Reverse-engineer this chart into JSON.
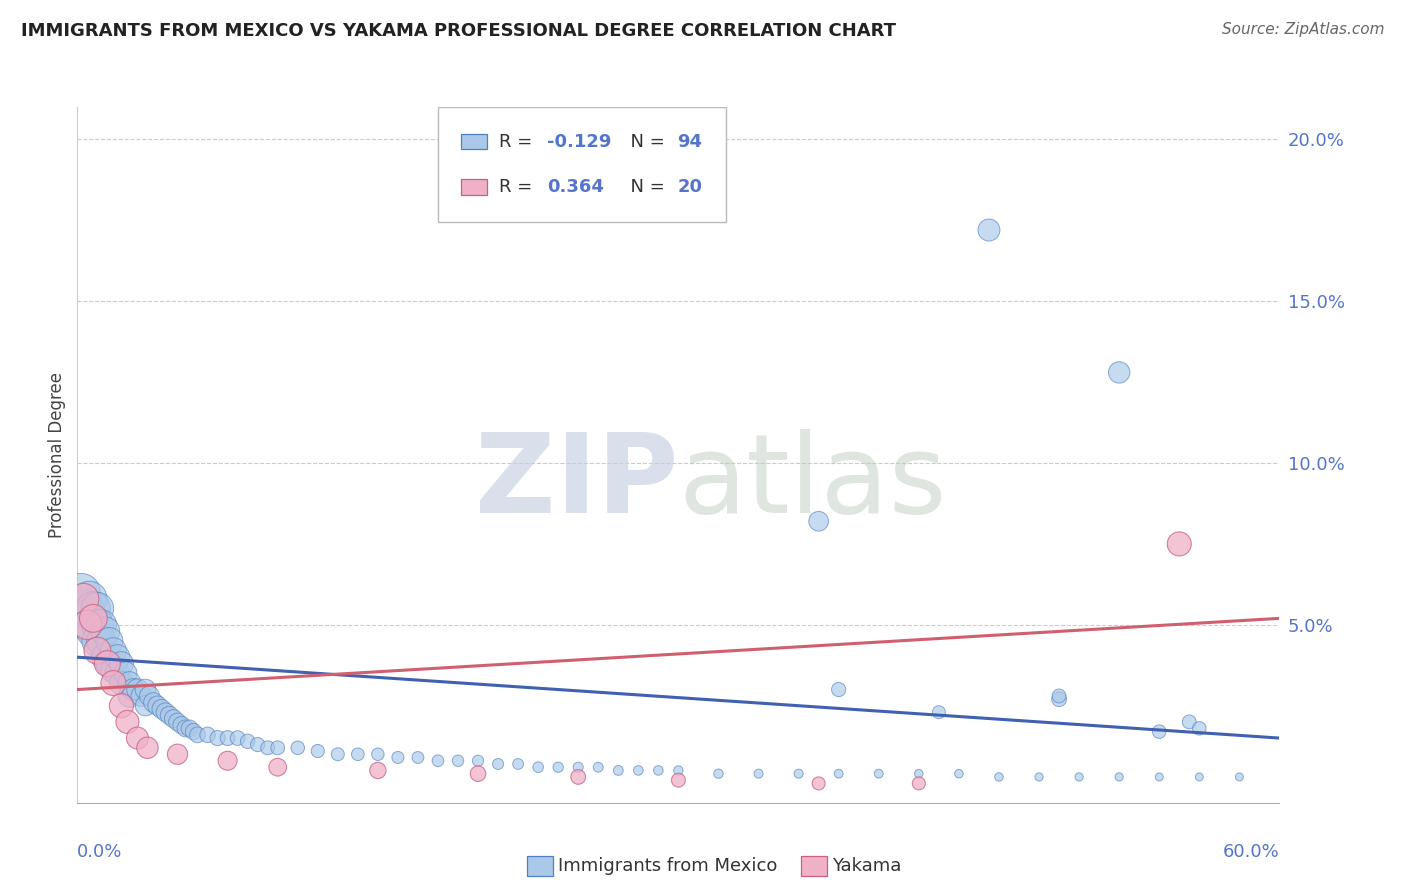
{
  "title": "IMMIGRANTS FROM MEXICO VS YAKAMA PROFESSIONAL DEGREE CORRELATION CHART",
  "source": "Source: ZipAtlas.com",
  "ylabel": "Professional Degree",
  "xlim": [
    0.0,
    0.6
  ],
  "ylim": [
    -0.005,
    0.21
  ],
  "yticks": [
    0.05,
    0.1,
    0.15,
    0.2
  ],
  "ytick_labels": [
    "5.0%",
    "10.0%",
    "15.0%",
    "20.0%"
  ],
  "xtick_left": "0.0%",
  "xtick_right": "60.0%",
  "blue_face": "#aac8e8",
  "blue_edge": "#5080c0",
  "pink_face": "#f0b0c8",
  "pink_edge": "#c86080",
  "blue_line": "#4060b0",
  "pink_line": "#d06070",
  "axis_color": "#5575cc",
  "title_color": "#222222",
  "source_color": "#666666",
  "grid_color": "#cccccc",
  "bg_color": "#ffffff",
  "blue_trend_x": [
    0.0,
    0.6
  ],
  "blue_trend_y": [
    0.04,
    0.015
  ],
  "pink_trend_x": [
    0.0,
    0.6
  ],
  "pink_trend_y": [
    0.03,
    0.052
  ],
  "blue_scatter_x": [
    0.002,
    0.004,
    0.006,
    0.006,
    0.008,
    0.008,
    0.01,
    0.01,
    0.01,
    0.012,
    0.012,
    0.014,
    0.014,
    0.016,
    0.016,
    0.018,
    0.018,
    0.02,
    0.02,
    0.022,
    0.022,
    0.024,
    0.026,
    0.026,
    0.028,
    0.03,
    0.032,
    0.034,
    0.034,
    0.036,
    0.038,
    0.04,
    0.042,
    0.044,
    0.046,
    0.048,
    0.05,
    0.052,
    0.054,
    0.056,
    0.058,
    0.06,
    0.065,
    0.07,
    0.075,
    0.08,
    0.085,
    0.09,
    0.095,
    0.1,
    0.11,
    0.12,
    0.13,
    0.14,
    0.15,
    0.16,
    0.17,
    0.18,
    0.19,
    0.2,
    0.21,
    0.22,
    0.23,
    0.24,
    0.25,
    0.26,
    0.27,
    0.28,
    0.29,
    0.3,
    0.32,
    0.34,
    0.36,
    0.38,
    0.4,
    0.42,
    0.44,
    0.46,
    0.48,
    0.5,
    0.52,
    0.54,
    0.56,
    0.58,
    0.455,
    0.37,
    0.52,
    0.555,
    0.49,
    0.54,
    0.38,
    0.43,
    0.56,
    0.49
  ],
  "blue_scatter_y": [
    0.06,
    0.055,
    0.058,
    0.05,
    0.055,
    0.048,
    0.055,
    0.05,
    0.045,
    0.05,
    0.045,
    0.048,
    0.04,
    0.045,
    0.038,
    0.042,
    0.036,
    0.04,
    0.035,
    0.038,
    0.032,
    0.035,
    0.032,
    0.028,
    0.03,
    0.03,
    0.028,
    0.03,
    0.025,
    0.028,
    0.026,
    0.025,
    0.024,
    0.023,
    0.022,
    0.021,
    0.02,
    0.019,
    0.018,
    0.018,
    0.017,
    0.016,
    0.016,
    0.015,
    0.015,
    0.015,
    0.014,
    0.013,
    0.012,
    0.012,
    0.012,
    0.011,
    0.01,
    0.01,
    0.01,
    0.009,
    0.009,
    0.008,
    0.008,
    0.008,
    0.007,
    0.007,
    0.006,
    0.006,
    0.006,
    0.006,
    0.005,
    0.005,
    0.005,
    0.005,
    0.004,
    0.004,
    0.004,
    0.004,
    0.004,
    0.004,
    0.004,
    0.003,
    0.003,
    0.003,
    0.003,
    0.003,
    0.003,
    0.003,
    0.172,
    0.082,
    0.128,
    0.02,
    0.027,
    0.017,
    0.03,
    0.023,
    0.018,
    0.028
  ],
  "blue_scatter_sizes": [
    300,
    280,
    260,
    250,
    240,
    230,
    220,
    210,
    200,
    190,
    180,
    170,
    160,
    150,
    145,
    140,
    135,
    130,
    125,
    120,
    115,
    110,
    108,
    105,
    100,
    95,
    90,
    88,
    85,
    82,
    80,
    78,
    75,
    73,
    70,
    68,
    65,
    63,
    60,
    58,
    55,
    52,
    50,
    48,
    46,
    45,
    43,
    42,
    40,
    40,
    38,
    36,
    35,
    33,
    32,
    30,
    29,
    28,
    27,
    26,
    25,
    24,
    23,
    22,
    21,
    20,
    20,
    19,
    19,
    18,
    18,
    17,
    17,
    16,
    16,
    15,
    15,
    15,
    14,
    14,
    14,
    13,
    13,
    13,
    100,
    80,
    95,
    40,
    45,
    38,
    42,
    35,
    38,
    40
  ],
  "pink_scatter_x": [
    0.003,
    0.005,
    0.008,
    0.01,
    0.015,
    0.018,
    0.022,
    0.025,
    0.03,
    0.035,
    0.05,
    0.075,
    0.1,
    0.15,
    0.2,
    0.25,
    0.3,
    0.37,
    0.42,
    0.55
  ],
  "pink_scatter_y": [
    0.058,
    0.05,
    0.052,
    0.042,
    0.038,
    0.032,
    0.025,
    0.02,
    0.015,
    0.012,
    0.01,
    0.008,
    0.006,
    0.005,
    0.004,
    0.003,
    0.002,
    0.001,
    0.001,
    0.075
  ],
  "pink_scatter_sizes": [
    200,
    180,
    160,
    150,
    140,
    130,
    120,
    110,
    100,
    95,
    85,
    75,
    65,
    55,
    50,
    45,
    40,
    35,
    35,
    120
  ],
  "legend_r1": "-0.129",
  "legend_n1": "94",
  "legend_r2": "0.364",
  "legend_n2": "20"
}
